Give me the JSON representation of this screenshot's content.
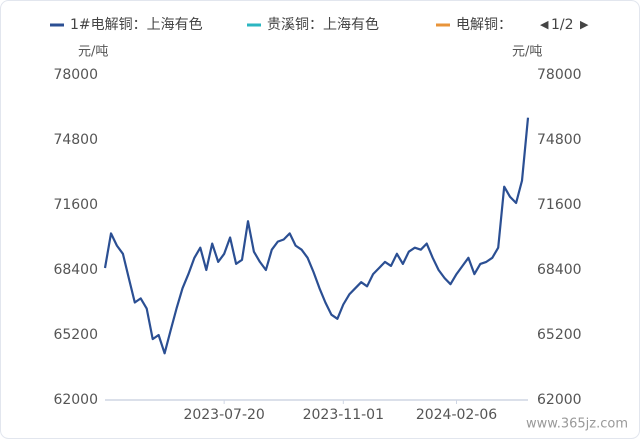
{
  "chart_data": {
    "type": "line",
    "legend_page": "1/2",
    "y_label": "元/吨",
    "y2_label": "元/吨",
    "watermark": "www.365jz.com",
    "categories": [
      null,
      null,
      null,
      null,
      null,
      null,
      null,
      null,
      null,
      null,
      null,
      null,
      null,
      null,
      null,
      null,
      null,
      null,
      null,
      null,
      "2023-07-20",
      null,
      null,
      null,
      null,
      null,
      null,
      null,
      null,
      null,
      null,
      null,
      null,
      null,
      null,
      null,
      null,
      null,
      null,
      null,
      "2023-11-01",
      null,
      null,
      null,
      null,
      null,
      null,
      null,
      null,
      null,
      null,
      null,
      null,
      null,
      null,
      null,
      null,
      null,
      null,
      "2024-02-06",
      null,
      null,
      null,
      null,
      null,
      null,
      null,
      null,
      null,
      null,
      null,
      null
    ],
    "series": [
      {
        "name": "1#电解铜：上海有色",
        "color": "#2b4f93",
        "values": [
          68500,
          70200,
          69600,
          69200,
          68000,
          66800,
          67000,
          66500,
          65000,
          65200,
          64300,
          65400,
          66500,
          67500,
          68200,
          69000,
          69500,
          68400,
          69700,
          68800,
          69200,
          70000,
          68700,
          68900,
          70800,
          69300,
          68800,
          68400,
          69400,
          69800,
          69900,
          70200,
          69600,
          69400,
          69000,
          68300,
          67500,
          66800,
          66200,
          66000,
          66700,
          67200,
          67500,
          67800,
          67600,
          68200,
          68500,
          68800,
          68600,
          69200,
          68700,
          69300,
          69500,
          69400,
          69700,
          69000,
          68400,
          68000,
          67700,
          68200,
          68600,
          69000,
          68200,
          68700,
          68800,
          69000,
          69500,
          72500,
          72000,
          71700,
          72800,
          75900
        ]
      },
      {
        "name": "贵溪铜：上海有色",
        "color": "#2bb6c1",
        "values": [
          null,
          null,
          null,
          null,
          null,
          null,
          null,
          null,
          null,
          null,
          null,
          null,
          null,
          null,
          null,
          null,
          null,
          null,
          null,
          null,
          null,
          null,
          null,
          null,
          null,
          null,
          null,
          null,
          null,
          null,
          null,
          null,
          null,
          null,
          null,
          null,
          null,
          null,
          null,
          null,
          null,
          null,
          null,
          null,
          null,
          null,
          null,
          null,
          null,
          null,
          null,
          null,
          null,
          null,
          null,
          null,
          null,
          null,
          null,
          null,
          null,
          null,
          null,
          null,
          null,
          null,
          null,
          null,
          null,
          null,
          null,
          null
        ]
      },
      {
        "name": "电解铜：",
        "color": "#e8943a",
        "values": [
          null,
          null,
          null,
          null,
          null,
          null,
          null,
          null,
          null,
          null,
          null,
          null,
          null,
          null,
          null,
          null,
          null,
          null,
          null,
          null,
          null,
          null,
          null,
          null,
          null,
          null,
          null,
          null,
          null,
          null,
          null,
          null,
          null,
          null,
          null,
          null,
          null,
          null,
          null,
          null,
          null,
          null,
          null,
          null,
          null,
          null,
          null,
          null,
          null,
          null,
          null,
          null,
          null,
          null,
          null,
          null,
          null,
          null,
          null,
          null,
          null,
          null,
          null,
          null,
          null,
          null,
          null,
          null,
          null,
          null,
          null,
          null
        ]
      }
    ],
    "ylim": [
      62000,
      78000
    ],
    "yticks": [
      62000,
      65200,
      68400,
      71600,
      74800,
      78000
    ],
    "y2lim": [
      62000,
      78000
    ],
    "y2ticks": [
      62000,
      65200,
      68400,
      71600,
      74800,
      78000
    ],
    "grid": false
  }
}
